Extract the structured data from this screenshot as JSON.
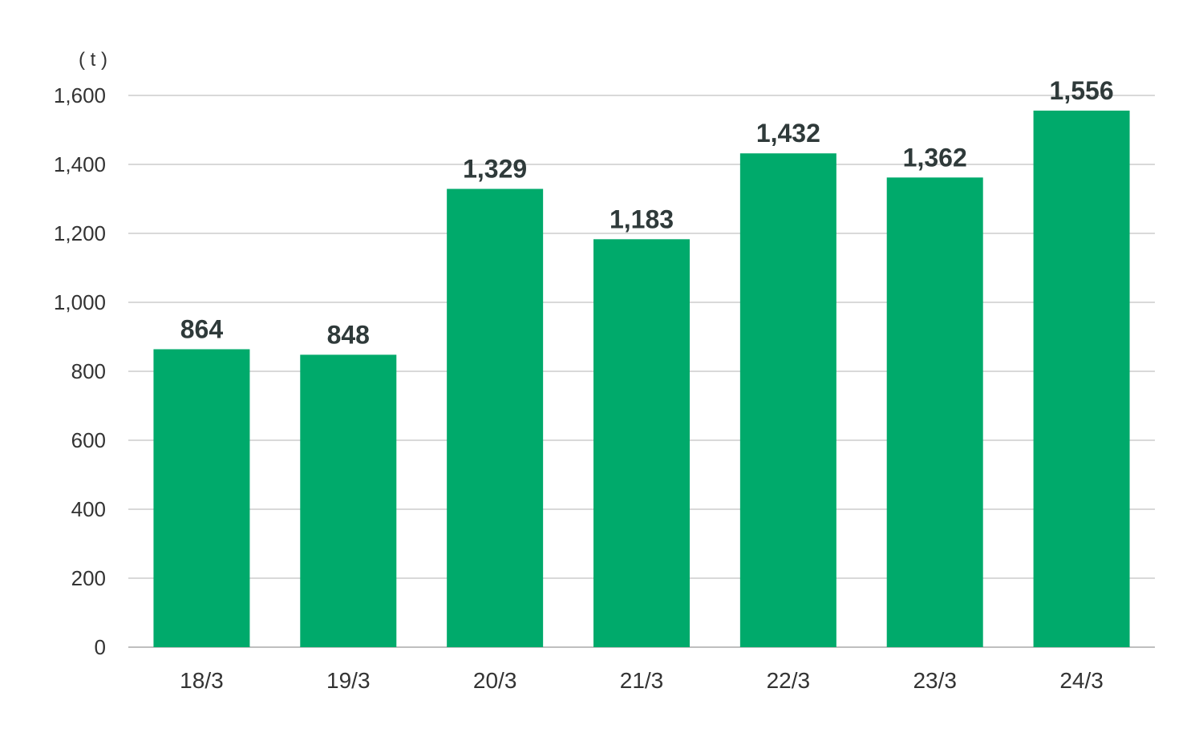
{
  "chart_data": {
    "type": "bar",
    "unit_label": "( t )",
    "categories": [
      "18/3",
      "19/3",
      "20/3",
      "21/3",
      "22/3",
      "23/3",
      "24/3"
    ],
    "values": [
      864,
      848,
      1329,
      1183,
      1432,
      1362,
      1556
    ],
    "data_labels": [
      "864",
      "848",
      "1,329",
      "1,183",
      "1,432",
      "1,362",
      "1,556"
    ],
    "y_ticks": [
      0,
      200,
      400,
      600,
      800,
      1000,
      1200,
      1400,
      1600
    ],
    "y_tick_labels": [
      "0",
      "200",
      "400",
      "600",
      "800",
      "1,000",
      "1,200",
      "1,400",
      "1,600"
    ],
    "ylim": [
      0,
      1600
    ],
    "grid": true,
    "bar_color": "#00AA6B",
    "grid_color": "#d9d9d9",
    "text_color": "#333333",
    "label_color": "#2f3a3a"
  }
}
